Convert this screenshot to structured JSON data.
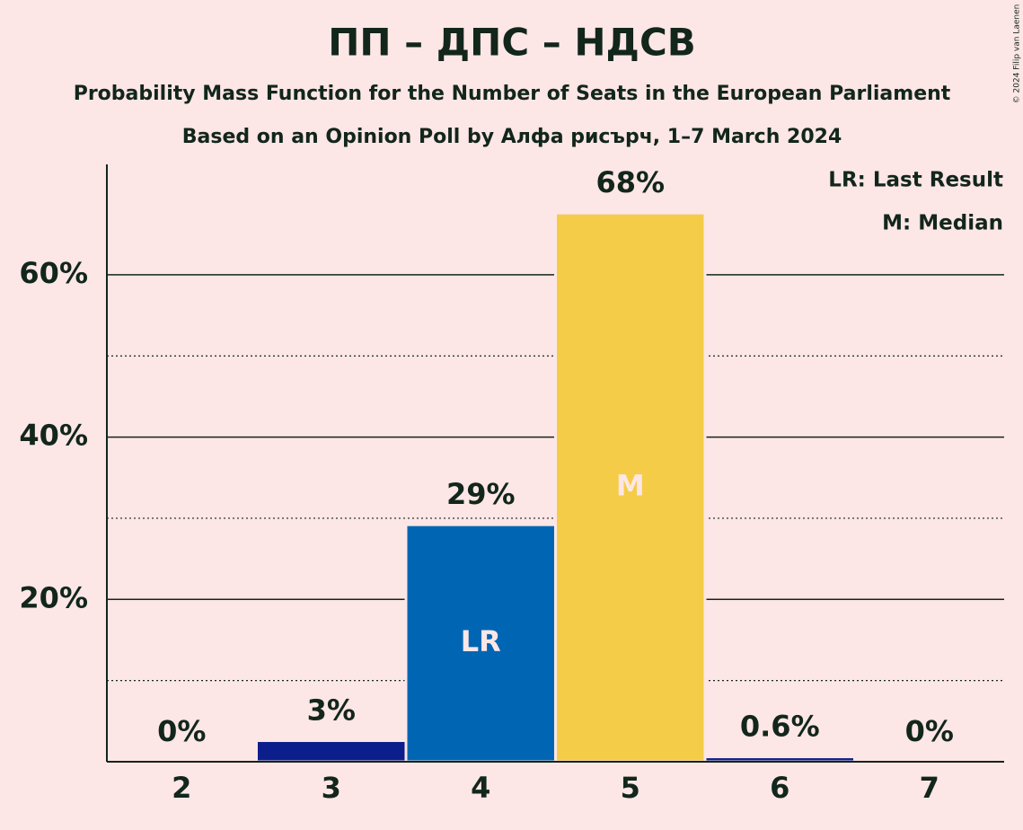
{
  "chart_data": {
    "type": "bar",
    "title": "ПП – ДПС – НДСВ",
    "subtitle": "Probability Mass Function for the Number of Seats in the European Parliament",
    "subtitle2": "Based on an Opinion Poll by Алфа рисърч, 1–7 March 2024",
    "categories": [
      "2",
      "3",
      "4",
      "5",
      "6",
      "7"
    ],
    "values": [
      0,
      2.6,
      29.2,
      67.6,
      0.6,
      0
    ],
    "value_labels": [
      "0%",
      "3%",
      "29%",
      "68%",
      "0.6%",
      "0%"
    ],
    "colors": [
      "#0c1e8c",
      "#0c1e8c",
      "#0066b3",
      "#f5cc47",
      "#0c1e8c",
      "#0c1e8c"
    ],
    "bar_labels": [
      null,
      null,
      "LR",
      "M",
      null,
      null
    ],
    "legend": [
      "LR: Last Result",
      "M: Median"
    ],
    "ylim": [
      0,
      73.6
    ],
    "yticks": [
      {
        "value": 20,
        "label": "20%"
      },
      {
        "value": 40,
        "label": "40%"
      },
      {
        "value": 60,
        "label": "60%"
      }
    ],
    "minor_yticks": [
      10,
      30,
      50
    ],
    "grid": true,
    "copyright": "© 2024 Filip van Laenen"
  }
}
